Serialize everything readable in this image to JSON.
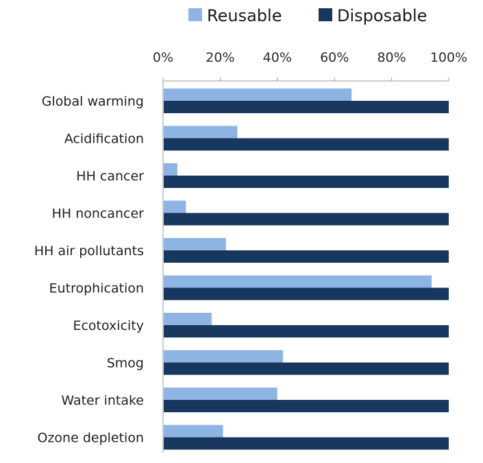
{
  "chart_data": {
    "type": "bar",
    "orientation": "horizontal",
    "categories": [
      "Global warming",
      "Acidification",
      "HH cancer",
      "HH noncancer",
      "HH air pollutants",
      "Eutrophication",
      "Ecotoxicity",
      "Smog",
      "Water intake",
      "Ozone depletion"
    ],
    "series": [
      {
        "name": "Reusable",
        "color": "#8eb4e3",
        "values": [
          66,
          26,
          5,
          8,
          22,
          94,
          17,
          42,
          40,
          21
        ]
      },
      {
        "name": "Disposable",
        "color": "#17375e",
        "values": [
          100,
          100,
          100,
          100,
          100,
          100,
          100,
          100,
          100,
          100
        ]
      }
    ],
    "xlim": [
      0,
      100
    ],
    "x_ticks": [
      0,
      20,
      40,
      60,
      80,
      100
    ],
    "x_tick_labels": [
      "0%",
      "20%",
      "40%",
      "60%",
      "80%",
      "100%"
    ],
    "x_axis_position": "top",
    "grid": false,
    "legend_position": "top-right",
    "title": "",
    "xlabel": "",
    "ylabel": ""
  }
}
